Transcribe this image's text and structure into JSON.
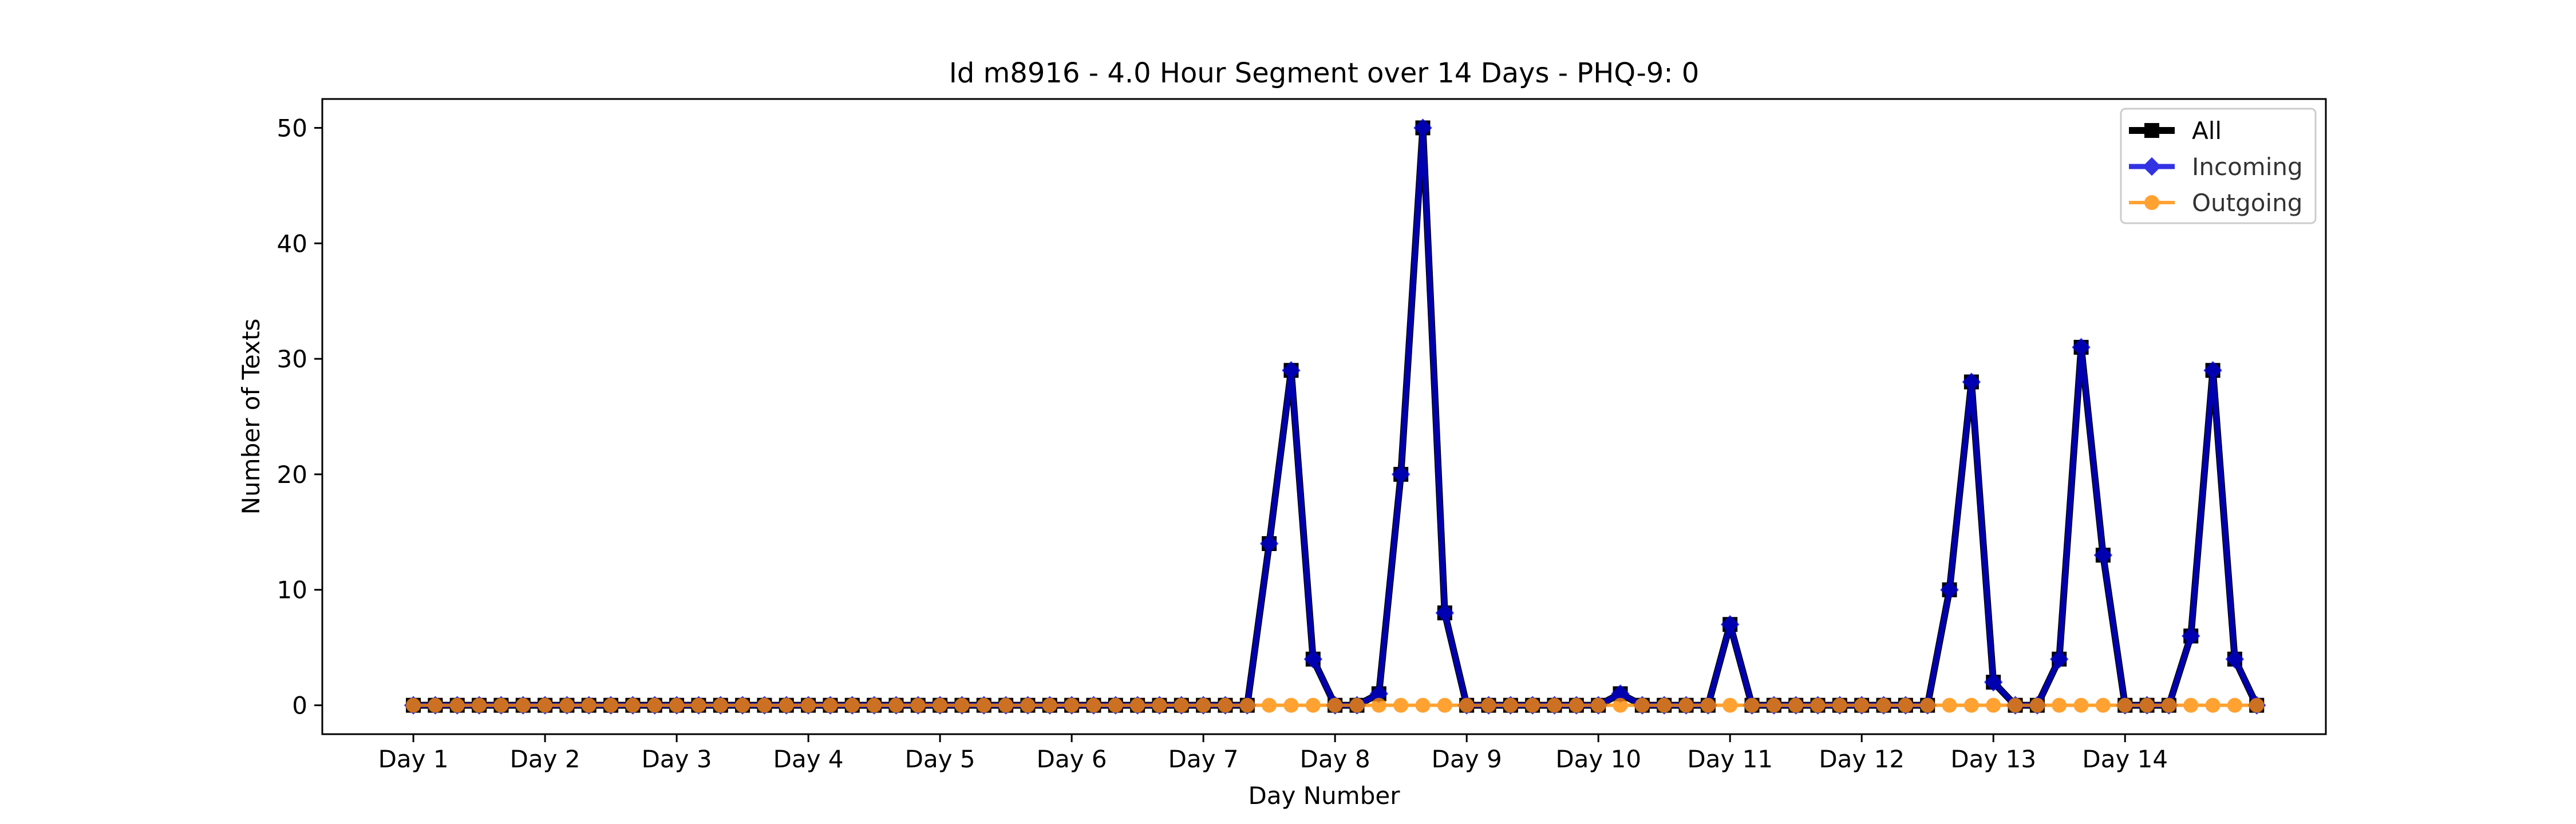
{
  "chart_data": {
    "type": "line",
    "title": "Id m8916 - 4.0 Hour Segment over 14 Days - PHQ-9: 0",
    "xlabel": "Day Number",
    "ylabel": "Number of Texts",
    "xlim": [
      -4.15,
      87.15
    ],
    "ylim": [
      -2.5,
      52.5
    ],
    "yticks": [
      0,
      10,
      20,
      30,
      40,
      50
    ],
    "xticks": [
      {
        "x": 0,
        "label": "Day 1"
      },
      {
        "x": 6,
        "label": "Day 2"
      },
      {
        "x": 12,
        "label": "Day 3"
      },
      {
        "x": 18,
        "label": "Day 4"
      },
      {
        "x": 24,
        "label": "Day 5"
      },
      {
        "x": 30,
        "label": "Day 6"
      },
      {
        "x": 36,
        "label": "Day 7"
      },
      {
        "x": 42,
        "label": "Day 8"
      },
      {
        "x": 48,
        "label": "Day 9"
      },
      {
        "x": 54,
        "label": "Day 10"
      },
      {
        "x": 60,
        "label": "Day 11"
      },
      {
        "x": 66,
        "label": "Day 12"
      },
      {
        "x": 72,
        "label": "Day 13"
      },
      {
        "x": 78,
        "label": "Day 14"
      }
    ],
    "legend_position": "top-right",
    "grid": false,
    "series": [
      {
        "name": "All",
        "color": "#000000",
        "marker": "square",
        "values": [
          0,
          0,
          0,
          0,
          0,
          0,
          0,
          0,
          0,
          0,
          0,
          0,
          0,
          0,
          0,
          0,
          0,
          0,
          0,
          0,
          0,
          0,
          0,
          0,
          0,
          0,
          0,
          0,
          0,
          0,
          0,
          0,
          0,
          0,
          0,
          0,
          0,
          0,
          0,
          14,
          29,
          4,
          0,
          0,
          1,
          20,
          50,
          8,
          0,
          0,
          0,
          0,
          0,
          0,
          0,
          1,
          0,
          0,
          0,
          0,
          7,
          0,
          0,
          0,
          0,
          0,
          0,
          0,
          0,
          0,
          10,
          28,
          2,
          0,
          0,
          4,
          31,
          13,
          0,
          0,
          0,
          6,
          29,
          4,
          0
        ]
      },
      {
        "name": "Incoming",
        "color": "#0000dd",
        "marker": "diamond",
        "values": [
          0,
          0,
          0,
          0,
          0,
          0,
          0,
          0,
          0,
          0,
          0,
          0,
          0,
          0,
          0,
          0,
          0,
          0,
          0,
          0,
          0,
          0,
          0,
          0,
          0,
          0,
          0,
          0,
          0,
          0,
          0,
          0,
          0,
          0,
          0,
          0,
          0,
          0,
          0,
          14,
          29,
          4,
          0,
          0,
          1,
          20,
          50,
          8,
          0,
          0,
          0,
          0,
          0,
          0,
          0,
          1,
          0,
          0,
          0,
          0,
          7,
          0,
          0,
          0,
          0,
          0,
          0,
          0,
          0,
          0,
          10,
          28,
          2,
          0,
          0,
          4,
          31,
          13,
          0,
          0,
          0,
          6,
          29,
          4,
          0
        ]
      },
      {
        "name": "Outgoing",
        "color": "#ff8c00",
        "marker": "circle",
        "values": [
          0,
          0,
          0,
          0,
          0,
          0,
          0,
          0,
          0,
          0,
          0,
          0,
          0,
          0,
          0,
          0,
          0,
          0,
          0,
          0,
          0,
          0,
          0,
          0,
          0,
          0,
          0,
          0,
          0,
          0,
          0,
          0,
          0,
          0,
          0,
          0,
          0,
          0,
          0,
          0,
          0,
          0,
          0,
          0,
          0,
          0,
          0,
          0,
          0,
          0,
          0,
          0,
          0,
          0,
          0,
          0,
          0,
          0,
          0,
          0,
          0,
          0,
          0,
          0,
          0,
          0,
          0,
          0,
          0,
          0,
          0,
          0,
          0,
          0,
          0,
          0,
          0,
          0,
          0,
          0,
          0,
          0,
          0,
          0,
          0
        ]
      }
    ]
  }
}
